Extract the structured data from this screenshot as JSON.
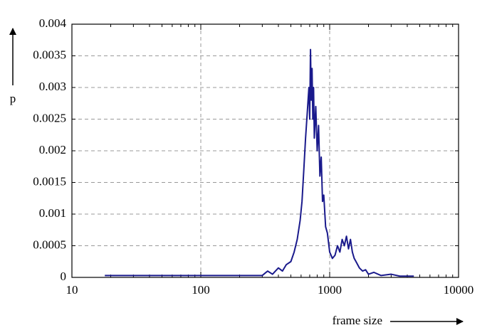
{
  "chart_data": {
    "type": "line",
    "xlabel": "frame size",
    "ylabel": "p",
    "x": [
      18,
      100,
      200,
      300,
      330,
      360,
      400,
      430,
      460,
      500,
      530,
      560,
      590,
      610,
      630,
      650,
      670,
      690,
      700,
      710,
      720,
      730,
      740,
      750,
      760,
      780,
      800,
      820,
      840,
      860,
      880,
      900,
      930,
      960,
      1000,
      1050,
      1100,
      1150,
      1200,
      1250,
      1300,
      1350,
      1400,
      1450,
      1500,
      1550,
      1600,
      1700,
      1800,
      1900,
      2000,
      2200,
      2500,
      3000,
      3500,
      4500
    ],
    "values": [
      3e-05,
      3e-05,
      3e-05,
      3e-05,
      0.0001,
      5e-05,
      0.00015,
      0.0001,
      0.0002,
      0.00025,
      0.0004,
      0.0006,
      0.0009,
      0.0012,
      0.0017,
      0.0022,
      0.0026,
      0.003,
      0.0025,
      0.0036,
      0.0028,
      0.0033,
      0.0025,
      0.003,
      0.0022,
      0.0027,
      0.002,
      0.0024,
      0.0016,
      0.0019,
      0.0012,
      0.0013,
      0.0008,
      0.0007,
      0.0004,
      0.0003,
      0.00035,
      0.0005,
      0.0004,
      0.0006,
      0.0005,
      0.00065,
      0.00045,
      0.0006,
      0.0004,
      0.0003,
      0.00025,
      0.00015,
      0.0001,
      0.00012,
      5e-05,
      8e-05,
      3e-05,
      5e-05,
      2e-05,
      2e-05
    ],
    "color": "#1a1a8c",
    "xscale": "log",
    "xlim": [
      10,
      10000
    ],
    "xticks": [
      10,
      100,
      1000,
      10000
    ],
    "ylim": [
      0,
      0.004
    ],
    "yticks": [
      0,
      0.0005,
      0.001,
      0.0015,
      0.002,
      0.0025,
      0.003,
      0.0035,
      0.004
    ],
    "grid": true
  }
}
